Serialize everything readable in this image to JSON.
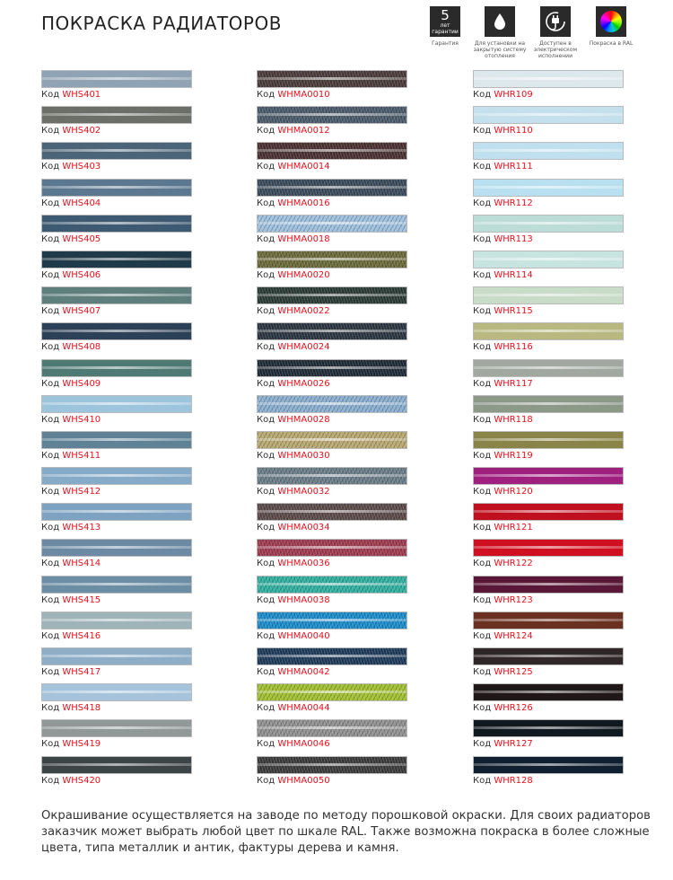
{
  "title": "ПОКРАСКА РАДИАТОРОВ",
  "features": [
    {
      "icon": "warranty-5-years-icon",
      "big": "5",
      "small": "лет",
      "tiny": "гарантии",
      "caption": "Гарантия"
    },
    {
      "icon": "water-drop-icon",
      "caption": "Для установки на закрытую систему отопления"
    },
    {
      "icon": "power-plug-icon",
      "caption": "Доступен в электрическом исполнении"
    },
    {
      "icon": "color-wheel-icon",
      "caption": "Покраска в RAL"
    }
  ],
  "code_prefix": "Код",
  "columns": [
    {
      "metallic": false,
      "items": [
        {
          "code": "WHS401",
          "color": "#8fa3b5"
        },
        {
          "code": "WHS402",
          "color": "#6c6e68"
        },
        {
          "code": "WHS403",
          "color": "#4c6478"
        },
        {
          "code": "WHS404",
          "color": "#5b7890"
        },
        {
          "code": "WHS405",
          "color": "#3e5a72"
        },
        {
          "code": "WHS406",
          "color": "#1f3a48"
        },
        {
          "code": "WHS407",
          "color": "#5e7f7c"
        },
        {
          "code": "WHS408",
          "color": "#2c4058"
        },
        {
          "code": "WHS409",
          "color": "#4f7a74"
        },
        {
          "code": "WHS410",
          "color": "#9cc4dc"
        },
        {
          "code": "WHS411",
          "color": "#5f8296"
        },
        {
          "code": "WHS412",
          "color": "#86abc8"
        },
        {
          "code": "WHS413",
          "color": "#7ea3c2"
        },
        {
          "code": "WHS414",
          "color": "#6d8aa4"
        },
        {
          "code": "WHS415",
          "color": "#6c8ea4"
        },
        {
          "code": "WHS416",
          "color": "#9fb4b8"
        },
        {
          "code": "WHS417",
          "color": "#8eaec8"
        },
        {
          "code": "WHS418",
          "color": "#a5c4dc"
        },
        {
          "code": "WHS419",
          "color": "#909898"
        },
        {
          "code": "WHS420",
          "color": "#3c4446"
        }
      ]
    },
    {
      "metallic": true,
      "items": [
        {
          "code": "WHMA0010",
          "color": "#4a3a3a"
        },
        {
          "code": "WHMA0012",
          "color": "#4a5a6a"
        },
        {
          "code": "WHMA0014",
          "color": "#4a3030"
        },
        {
          "code": "WHMA0016",
          "color": "#3a4a5a"
        },
        {
          "code": "WHMA0018",
          "color": "#9ec0de"
        },
        {
          "code": "WHMA0020",
          "color": "#6a6a3a"
        },
        {
          "code": "WHMA0022",
          "color": "#2a3a34"
        },
        {
          "code": "WHMA0024",
          "color": "#2a3440"
        },
        {
          "code": "WHMA0026",
          "color": "#1e2a36"
        },
        {
          "code": "WHMA0028",
          "color": "#8aaed0"
        },
        {
          "code": "WHMA0030",
          "color": "#b8a870"
        },
        {
          "code": "WHMA0032",
          "color": "#6a7c88"
        },
        {
          "code": "WHMA0034",
          "color": "#5a4a48"
        },
        {
          "code": "WHMA0036",
          "color": "#a03a50"
        },
        {
          "code": "WHMA0038",
          "color": "#30b0a0"
        },
        {
          "code": "WHMA0040",
          "color": "#1a8ccc"
        },
        {
          "code": "WHMA0042",
          "color": "#1e3a5a"
        },
        {
          "code": "WHMA0044",
          "color": "#a0c030"
        },
        {
          "code": "WHMA0046",
          "color": "#909090"
        },
        {
          "code": "WHMA0050",
          "color": "#3a3a3a"
        }
      ]
    },
    {
      "metallic": false,
      "items": [
        {
          "code": "WHR109",
          "color": "#dde8ec"
        },
        {
          "code": "WHR110",
          "color": "#c4e0ec"
        },
        {
          "code": "WHR111",
          "color": "#c0e0f0"
        },
        {
          "code": "WHR112",
          "color": "#b8e0f0"
        },
        {
          "code": "WHR113",
          "color": "#bcdcd8"
        },
        {
          "code": "WHR114",
          "color": "#c8e4e0"
        },
        {
          "code": "WHR115",
          "color": "#c8dcc8"
        },
        {
          "code": "WHR116",
          "color": "#b8b880"
        },
        {
          "code": "WHR117",
          "color": "#a0a8a0"
        },
        {
          "code": "WHR118",
          "color": "#8c9888"
        },
        {
          "code": "WHR119",
          "color": "#8a8448"
        },
        {
          "code": "WHR120",
          "color": "#a02080"
        },
        {
          "code": "WHR121",
          "color": "#c01020"
        },
        {
          "code": "WHR122",
          "color": "#d01020"
        },
        {
          "code": "WHR123",
          "color": "#5a1838"
        },
        {
          "code": "WHR124",
          "color": "#6a3020"
        },
        {
          "code": "WHR125",
          "color": "#302828"
        },
        {
          "code": "WHR126",
          "color": "#201818"
        },
        {
          "code": "WHR127",
          "color": "#101820"
        },
        {
          "code": "WHR128",
          "color": "#102030"
        }
      ]
    }
  ],
  "footer": "Окрашивание осуществляется на заводе по методу порошковой окраски. Для своих радиаторов заказчик может выбрать любой цвет по шкале RAL. Также возможна покраска в более сложные цвета, типа металлик и антик, фактуры дерева и камня."
}
